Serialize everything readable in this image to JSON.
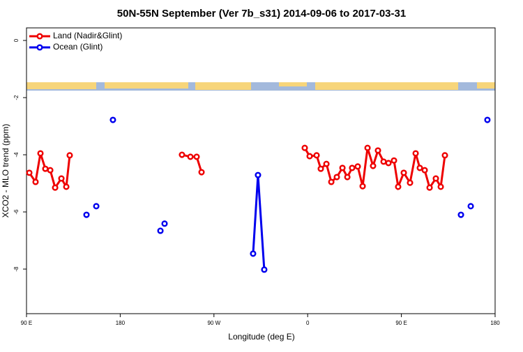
{
  "chart_data": {
    "type": "line",
    "title": "50N-55N September (Ver 7b_s31)   2014-09-06 to 2017-03-31",
    "x_label": "Longitude (deg E)",
    "y_label": "XCO2 - MLO trend (ppm)",
    "xlim": [
      90,
      540
    ],
    "xticks": [
      {
        "value": 90,
        "label": "90 E"
      },
      180,
      {
        "value": 270,
        "label": "90 W"
      },
      {
        "value": 360,
        "label": "0"
      },
      {
        "value": 450,
        "label": "90 E"
      },
      {
        "value": 540,
        "label": "180"
      }
    ],
    "ylim": [
      -9.56,
      0.44
    ],
    "yticks": [
      0,
      -2,
      -4,
      -6,
      -8
    ],
    "legend": "top-left",
    "series": [
      {
        "name": "Land (Nadir&Glint)",
        "color": "#ee0000",
        "x": [
          92.7,
          98.7,
          103.4,
          108.1,
          112.8,
          117.5,
          123.5,
          128.2,
          131.5,
          null,
          239.3,
          247.4,
          253.4,
          258.1,
          null,
          357.2,
          361.9,
          368.6,
          372.6,
          378.0,
          382.7,
          388.0,
          393.4,
          398.1,
          402.7,
          408.1,
          412.8,
          417.5,
          422.8,
          427.5,
          432.9,
          437.6,
          442.9,
          446.9,
          452.3,
          458.3,
          463.7,
          467.7,
          472.4,
          477.1,
          483.1,
          487.8,
          491.8
        ],
        "values": [
          -4.63,
          -4.95,
          -3.95,
          -4.49,
          -4.54,
          -5.15,
          -4.83,
          -5.12,
          -4.02,
          null,
          -4.0,
          -4.07,
          -4.07,
          -4.61,
          null,
          -3.76,
          -4.05,
          -4.02,
          -4.49,
          -4.32,
          -4.95,
          -4.78,
          -4.46,
          -4.78,
          -4.46,
          -4.41,
          -5.1,
          -3.76,
          -4.39,
          -3.85,
          -4.24,
          -4.29,
          -4.2,
          -5.12,
          -4.63,
          -4.98,
          -3.95,
          -4.46,
          -4.54,
          -5.15,
          -4.83,
          -5.12,
          -4.02
        ]
      },
      {
        "name": "Ocean (Glint)",
        "color": "#0000ee",
        "x": [
          147.6,
          null,
          157.0,
          null,
          173.0,
          null,
          218.6,
          null,
          222.6,
          null,
          307.6,
          312.3,
          318.3,
          null,
          507.2,
          null,
          516.6,
          null,
          532.6
        ],
        "values": [
          -6.1,
          null,
          -5.8,
          null,
          -2.78,
          null,
          -6.66,
          null,
          -6.41,
          null,
          -7.46,
          -4.71,
          -8.02,
          null,
          -6.1,
          null,
          -5.8,
          null,
          -2.78
        ]
      }
    ]
  }
}
